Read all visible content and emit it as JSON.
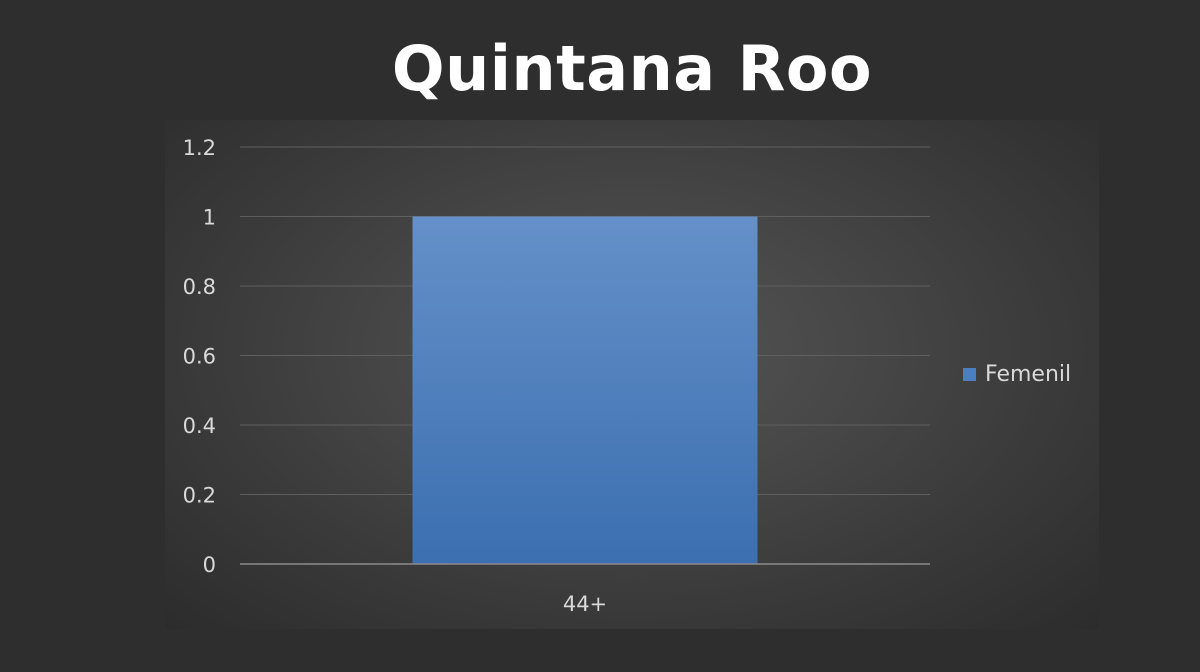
{
  "page": {
    "title": "Quintana Roo"
  },
  "chart_data": {
    "type": "bar",
    "title": "",
    "categories": [
      "44+"
    ],
    "series": [
      {
        "name": "Femenil",
        "values": [
          1
        ]
      }
    ],
    "ylim": [
      0,
      1.2
    ],
    "yticks": [
      "0",
      "0.2",
      "0.4",
      "0.6",
      "0.8",
      "1",
      "1.2"
    ],
    "yticks_values": [
      0,
      0.2,
      0.4,
      0.6,
      0.8,
      1,
      1.2
    ],
    "grid": true,
    "legend_position": "right",
    "colors": {
      "bar_top": "#6590c8",
      "bar_bottom": "#3b6fb0",
      "legend_swatch": "#4a7fc1",
      "text": "#d9d9d9",
      "grid": "#5f5f5f",
      "axis": "#8c8c8c"
    }
  }
}
